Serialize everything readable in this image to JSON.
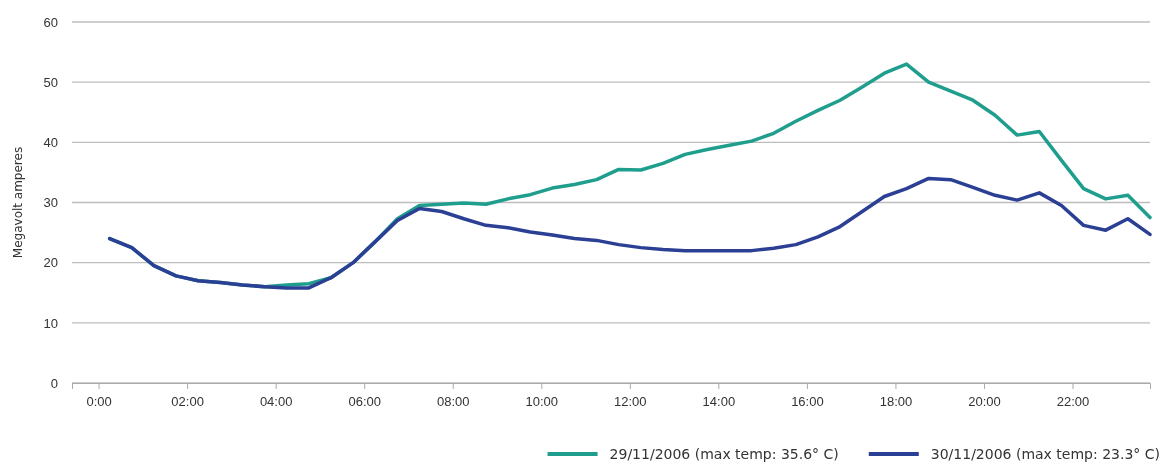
{
  "chart_data": {
    "type": "line",
    "ylabel": "Megavolt amperes",
    "x": [
      0.25,
      0.75,
      1.25,
      1.75,
      2.25,
      2.75,
      3.25,
      3.75,
      4.25,
      4.75,
      5.25,
      5.75,
      6.25,
      6.75,
      7.25,
      7.75,
      8.25,
      8.75,
      9.25,
      9.75,
      10.25,
      10.75,
      11.25,
      11.75,
      12.25,
      12.75,
      13.25,
      13.75,
      14.25,
      14.75,
      15.25,
      15.75,
      16.25,
      16.75,
      17.25,
      17.75,
      18.25,
      18.75,
      19.25,
      19.75,
      20.25,
      20.75,
      21.25,
      21.75,
      22.25,
      22.75,
      23.25,
      23.75
    ],
    "series": [
      {
        "name": "29/11/2006 (max temp: 35.6° C)",
        "color": "#1f9e8e",
        "values": [
          24,
          22.5,
          19.5,
          17.8,
          17,
          16.7,
          16.3,
          16,
          16.3,
          16.5,
          17.5,
          20,
          23.5,
          27.3,
          29.5,
          29.7,
          29.9,
          29.7,
          30.6,
          31.3,
          32.4,
          33,
          33.8,
          35.5,
          35.4,
          36.5,
          38,
          38.8,
          39.5,
          40.2,
          41.5,
          43.5,
          45.3,
          47,
          49.2,
          51.5,
          53,
          50,
          48.5,
          47,
          44.5,
          41.2,
          41.8,
          37,
          32.3,
          30.6,
          31.2,
          27.5
        ]
      },
      {
        "name": "30/11/2006 (max temp: 23.3° C)",
        "color": "#2b3f94",
        "values": [
          24,
          22.5,
          19.5,
          17.8,
          17,
          16.7,
          16.3,
          16,
          15.8,
          15.8,
          17.5,
          20,
          23.5,
          27,
          29,
          28.5,
          27.3,
          26.2,
          25.8,
          25.1,
          24.6,
          24,
          23.7,
          23,
          22.5,
          22.2,
          22,
          22,
          22,
          22,
          22.4,
          23,
          24.3,
          26,
          28.5,
          31,
          32.3,
          34,
          33.8,
          32.5,
          31.2,
          30.4,
          31.6,
          29.5,
          26.2,
          25.4,
          27.3,
          24.7
        ]
      }
    ],
    "xlim": [
      -0.6,
      23.75
    ],
    "xticks": [
      {
        "value": 0,
        "label": "0:00"
      },
      {
        "value": 2,
        "label": "02:00"
      },
      {
        "value": 4,
        "label": "04:00"
      },
      {
        "value": 6,
        "label": "06:00"
      },
      {
        "value": 8,
        "label": "08:00"
      },
      {
        "value": 10,
        "label": "10:00"
      },
      {
        "value": 12,
        "label": "12:00"
      },
      {
        "value": 14,
        "label": "14:00"
      },
      {
        "value": 16,
        "label": "16:00"
      },
      {
        "value": 18,
        "label": "18:00"
      },
      {
        "value": 20,
        "label": "20:00"
      },
      {
        "value": 22,
        "label": "22:00"
      }
    ],
    "ylim": [
      0,
      60
    ],
    "yticks": [
      0,
      10,
      20,
      30,
      40,
      50,
      60
    ],
    "grid": "y",
    "legend": "bottom right",
    "marker": "none",
    "line_style": "solid"
  }
}
